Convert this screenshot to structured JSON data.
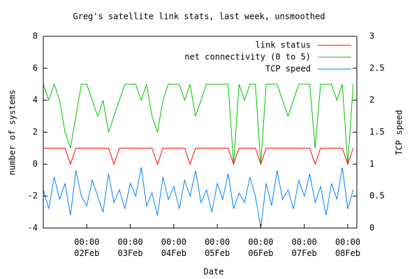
{
  "chart_data": {
    "type": "line",
    "title": "Greg's satellite link stats, last week, unsmoothed",
    "x_label": "Date",
    "y_label": "number of systems",
    "y2_label": "TCP speed",
    "x": [
      "01Feb 00:00",
      "01Feb 03:00",
      "01Feb 06:00",
      "01Feb 09:00",
      "01Feb 12:00",
      "01Feb 15:00",
      "01Feb 18:00",
      "01Feb 21:00",
      "02Feb 00:00",
      "02Feb 03:00",
      "02Feb 06:00",
      "02Feb 09:00",
      "02Feb 12:00",
      "02Feb 15:00",
      "02Feb 18:00",
      "02Feb 21:00",
      "03Feb 00:00",
      "03Feb 03:00",
      "03Feb 06:00",
      "03Feb 09:00",
      "03Feb 12:00",
      "03Feb 15:00",
      "03Feb 18:00",
      "03Feb 21:00",
      "04Feb 00:00",
      "04Feb 03:00",
      "04Feb 06:00",
      "04Feb 09:00",
      "04Feb 12:00",
      "04Feb 15:00",
      "04Feb 18:00",
      "04Feb 21:00",
      "05Feb 00:00",
      "05Feb 03:00",
      "05Feb 06:00",
      "05Feb 09:00",
      "05Feb 12:00",
      "05Feb 15:00",
      "05Feb 18:00",
      "05Feb 21:00",
      "06Feb 00:00",
      "06Feb 03:00",
      "06Feb 06:00",
      "06Feb 09:00",
      "06Feb 12:00",
      "06Feb 15:00",
      "06Feb 18:00",
      "06Feb 21:00",
      "07Feb 00:00",
      "07Feb 03:00",
      "07Feb 06:00",
      "07Feb 09:00",
      "07Feb 12:00",
      "07Feb 15:00",
      "07Feb 18:00",
      "07Feb 21:00",
      "08Feb 00:00",
      "08Feb 03:00"
    ],
    "xlim": [
      "01Feb 00:00",
      "08Feb 05:00"
    ],
    "xticks": [
      {
        "value": "02Feb 00:00",
        "label": [
          "00:00",
          "02Feb"
        ]
      },
      {
        "value": "03Feb 00:00",
        "label": [
          "00:00",
          "03Feb"
        ]
      },
      {
        "value": "04Feb 00:00",
        "label": [
          "00:00",
          "04Feb"
        ]
      },
      {
        "value": "05Feb 00:00",
        "label": [
          "00:00",
          "05Feb"
        ]
      },
      {
        "value": "06Feb 00:00",
        "label": [
          "00:00",
          "06Feb"
        ]
      },
      {
        "value": "07Feb 00:00",
        "label": [
          "00:00",
          "07Feb"
        ]
      },
      {
        "value": "08Feb 00:00",
        "label": [
          "00:00",
          "08Feb"
        ]
      }
    ],
    "ylim": [
      -4,
      8
    ],
    "yticks": [
      -4,
      -2,
      0,
      2,
      4,
      6,
      8
    ],
    "y2lim": [
      0,
      3
    ],
    "y2ticks": [
      0,
      0.5,
      1,
      1.5,
      2,
      2.5,
      3
    ],
    "legend": "top-right",
    "series": [
      {
        "name": "link status",
        "color": "#ff0000",
        "values": [
          1,
          1,
          1,
          1,
          1,
          0,
          1,
          1,
          1,
          1,
          1,
          1,
          1,
          0,
          1,
          1,
          1,
          1,
          1,
          1,
          1,
          0,
          1,
          1,
          1,
          1,
          1,
          0,
          1,
          1,
          1,
          1,
          1,
          1,
          1,
          0,
          1,
          1,
          1,
          1,
          0,
          1,
          1,
          1,
          1,
          1,
          1,
          1,
          1,
          1,
          0,
          1,
          1,
          1,
          1,
          1,
          0,
          1
        ]
      },
      {
        "name": "net connectivity (0 to 5)",
        "color": "#00c000",
        "values": [
          5,
          4,
          5,
          4,
          2,
          1,
          3,
          5,
          5,
          4,
          3,
          4,
          2,
          3,
          4,
          5,
          5,
          5,
          4,
          5,
          3,
          2,
          4,
          5,
          5,
          5,
          4,
          5,
          3,
          4,
          5,
          5,
          5,
          5,
          5,
          0,
          5,
          4,
          5,
          5,
          0,
          5,
          5,
          5,
          4,
          3,
          4,
          5,
          5,
          5,
          1,
          5,
          5,
          5,
          4,
          5,
          0,
          5
        ]
      },
      {
        "name": "TCP speed",
        "color": "#0080ff",
        "axis": "y2",
        "values": [
          0.6,
          0.3,
          0.8,
          0.45,
          0.7,
          0.2,
          0.9,
          0.5,
          0.35,
          0.75,
          0.5,
          0.25,
          0.85,
          0.4,
          0.6,
          0.3,
          0.7,
          0.5,
          0.95,
          0.35,
          0.55,
          0.2,
          0.8,
          0.45,
          0.65,
          0.3,
          0.75,
          0.5,
          0.9,
          0.4,
          0.6,
          0.25,
          0.7,
          0.45,
          0.85,
          0.3,
          0.55,
          0.4,
          0.8,
          0.5,
          0,
          0.7,
          0.35,
          0.9,
          0.45,
          0.6,
          0.3,
          0.75,
          0.5,
          0.85,
          0.4,
          0.65,
          0.2,
          0.7,
          0.45,
          0.95,
          0.3,
          0.6
        ]
      }
    ]
  }
}
